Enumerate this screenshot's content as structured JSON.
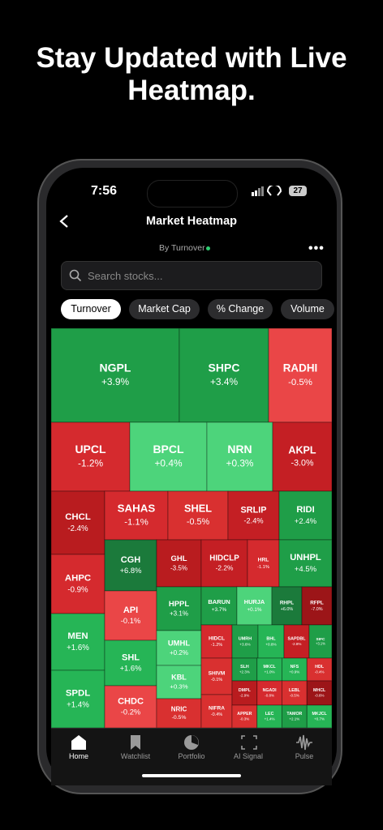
{
  "headline": {
    "line1": "Stay Updated with Live",
    "line2": "Heatmap."
  },
  "status_bar": {
    "time": "7:56",
    "battery": "27"
  },
  "header": {
    "title": "Market Heatmap",
    "subtitle": "By Turnover"
  },
  "search": {
    "placeholder": "Search stocks..."
  },
  "filters": [
    "Turnover",
    "Market Cap",
    "% Change",
    "Volume"
  ],
  "tiles": [
    {
      "name": "NGPL",
      "change": "+3.9%",
      "color": "#1f9e48"
    },
    {
      "name": "SHPC",
      "change": "+3.4%",
      "color": "#1f9e48"
    },
    {
      "name": "RADHI",
      "change": "-0.5%",
      "color": "#ea4647"
    },
    {
      "name": "UPCL",
      "change": "-1.2%",
      "color": "#d52a2e"
    },
    {
      "name": "BPCL",
      "change": "+0.4%",
      "color": "#4dd47b"
    },
    {
      "name": "NRN",
      "change": "+0.3%",
      "color": "#4dd47b"
    },
    {
      "name": "AKPL",
      "change": "-3.0%",
      "color": "#c41f24"
    },
    {
      "name": "CHCL",
      "change": "-2.4%",
      "color": "#b91c1f"
    },
    {
      "name": "SAHAS",
      "change": "-1.1%",
      "color": "#d52a2e"
    },
    {
      "name": "SHEL",
      "change": "-0.5%",
      "color": "#d93030"
    },
    {
      "name": "SRLIP",
      "change": "-2.4%",
      "color": "#c41f24"
    },
    {
      "name": "RIDI",
      "change": "+2.4%",
      "color": "#1f9e48"
    },
    {
      "name": "AHPC",
      "change": "-0.9%",
      "color": "#d52a2e"
    },
    {
      "name": "CGH",
      "change": "+6.8%",
      "color": "#1b7a3b"
    },
    {
      "name": "GHL",
      "change": "-3.5%",
      "color": "#b91c1f"
    },
    {
      "name": "HIDCLP",
      "change": "-2.2%",
      "color": "#c41f24"
    },
    {
      "name": "HRL",
      "change": "-1.1%",
      "color": "#d52a2e"
    },
    {
      "name": "UNHPL",
      "change": "+4.5%",
      "color": "#1f9e48"
    },
    {
      "name": "MEN",
      "change": "+1.6%",
      "color": "#26b556"
    },
    {
      "name": "SPDL",
      "change": "+1.4%",
      "color": "#26b556"
    },
    {
      "name": "API",
      "change": "-0.1%",
      "color": "#ea4647"
    },
    {
      "name": "SHL",
      "change": "+1.6%",
      "color": "#26b556"
    },
    {
      "name": "CHDC",
      "change": "-0.2%",
      "color": "#ea4647"
    },
    {
      "name": "HPPL",
      "change": "+3.1%",
      "color": "#1f9e48"
    },
    {
      "name": "UMHL",
      "change": "+0.2%",
      "color": "#4dd47b"
    },
    {
      "name": "KBL",
      "change": "+0.3%",
      "color": "#4dd47b"
    },
    {
      "name": "NRIC",
      "change": "-0.5%",
      "color": "#d93030"
    },
    {
      "name": "BARUN",
      "change": "+3.7%",
      "color": "#1f9e48"
    },
    {
      "name": "HURJA",
      "change": "+0.1%",
      "color": "#4dd47b"
    },
    {
      "name": "RHPL",
      "change": "+6.0%",
      "color": "#1b7a3b"
    },
    {
      "name": "RFPL",
      "change": "-7.0%",
      "color": "#9c1518"
    },
    {
      "name": "HIDCL",
      "change": "-1.2%",
      "color": "#d52a2e"
    },
    {
      "name": "UMRH",
      "change": "+3.6%",
      "color": "#1f9e48"
    },
    {
      "name": "BHL",
      "change": "+0.8%",
      "color": "#26b556"
    },
    {
      "name": "SAPDBL",
      "change": "-2.8%",
      "color": "#c41f24"
    },
    {
      "name": "SIFC",
      "change": "+3.1%",
      "color": "#1f9e48"
    },
    {
      "name": "SHIVM",
      "change": "-0.1%",
      "color": "#d93030"
    },
    {
      "name": "NIFRA",
      "change": "-0.4%",
      "color": "#d93030"
    },
    {
      "name": "SLH",
      "change": "+2.3%",
      "color": "#1f9e48"
    },
    {
      "name": "MKCL",
      "change": "+1.0%",
      "color": "#26b556"
    },
    {
      "name": "NFS",
      "change": "+0.9%",
      "color": "#26b556"
    },
    {
      "name": "HDL",
      "change": "-0.4%",
      "color": "#d93030"
    },
    {
      "name": "DMPL",
      "change": "-2.9%",
      "color": "#b91c1f"
    },
    {
      "name": "NGADI",
      "change": "-0.8%",
      "color": "#d52a2e"
    },
    {
      "name": "LEBL",
      "change": "-0.5%",
      "color": "#d93030"
    },
    {
      "name": "MHCL",
      "change": "-0.6%",
      "color": "#9c1518"
    },
    {
      "name": "APPER",
      "change": "-0.3%",
      "color": "#d93030"
    },
    {
      "name": "LEC",
      "change": "+1.4%",
      "color": "#26b556"
    },
    {
      "name": "TAMOR",
      "change": "+2.1%",
      "color": "#1f9e48"
    },
    {
      "name": "MKJCL",
      "change": "+0.7%",
      "color": "#26b556"
    }
  ],
  "nav": [
    "Home",
    "Watchlist",
    "Portfolio",
    "AI Signal",
    "Pulse"
  ]
}
